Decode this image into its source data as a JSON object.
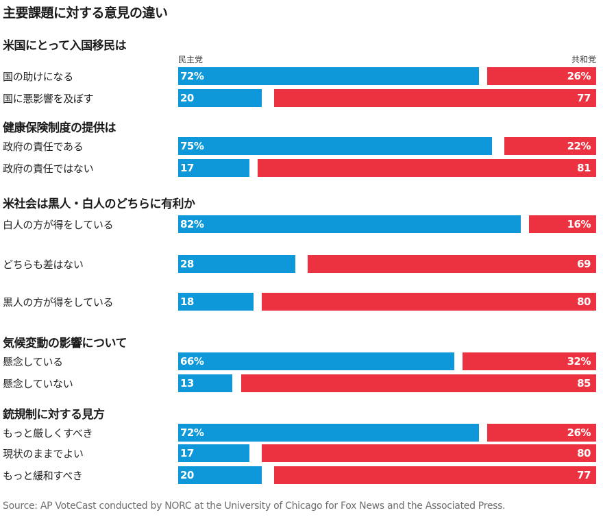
{
  "chart_data": {
    "type": "bar",
    "title": "主要課題に対する意見の違い",
    "legend": {
      "dem": "民主党",
      "rep": "共和党"
    },
    "colors": {
      "dem": "#0e98d9",
      "rep": "#ec3240"
    },
    "groups": [
      {
        "title": "米国にとって入国移民は",
        "rows": [
          {
            "label": "国の助けになる",
            "dem": 72,
            "rep": 26,
            "dem_text": "72%",
            "rep_text": "26%"
          },
          {
            "label": "国に悪影響を及ぼす",
            "dem": 20,
            "rep": 77,
            "dem_text": "20",
            "rep_text": "77"
          }
        ]
      },
      {
        "title": "健康保険制度の提供は",
        "rows": [
          {
            "label": "政府の責任である",
            "dem": 75,
            "rep": 22,
            "dem_text": "75%",
            "rep_text": "22%"
          },
          {
            "label": "政府の責任ではない",
            "dem": 17,
            "rep": 81,
            "dem_text": "17",
            "rep_text": "81"
          }
        ]
      },
      {
        "title": "米社会は黒人・白人のどちらに有利か",
        "rows": [
          {
            "label": "白人の方が得をしている",
            "dem": 82,
            "rep": 16,
            "dem_text": "82%",
            "rep_text": "16%"
          },
          {
            "label": "どちらも差はない",
            "dem": 28,
            "rep": 69,
            "dem_text": "28",
            "rep_text": "69"
          },
          {
            "label": "黒人の方が得をしている",
            "dem": 18,
            "rep": 80,
            "dem_text": "18",
            "rep_text": "80"
          }
        ]
      },
      {
        "title": "気候変動の影響について",
        "rows": [
          {
            "label": "懸念している",
            "dem": 66,
            "rep": 32,
            "dem_text": "66%",
            "rep_text": "32%"
          },
          {
            "label": "懸念していない",
            "dem": 13,
            "rep": 85,
            "dem_text": "13",
            "rep_text": "85"
          }
        ]
      },
      {
        "title": "銃規制に対する見方",
        "rows": [
          {
            "label": "もっと厳しくすべき",
            "dem": 72,
            "rep": 26,
            "dem_text": "72%",
            "rep_text": "26%"
          },
          {
            "label": "現状のままでよい",
            "dem": 17,
            "rep": 80,
            "dem_text": "17",
            "rep_text": "80"
          },
          {
            "label": "もっと緩和すべき",
            "dem": 20,
            "rep": 77,
            "dem_text": "20",
            "rep_text": "77"
          }
        ]
      }
    ]
  },
  "source": "Source: AP VoteCast conducted by NORC at the University of Chicago for Fox News and the Associated Press."
}
